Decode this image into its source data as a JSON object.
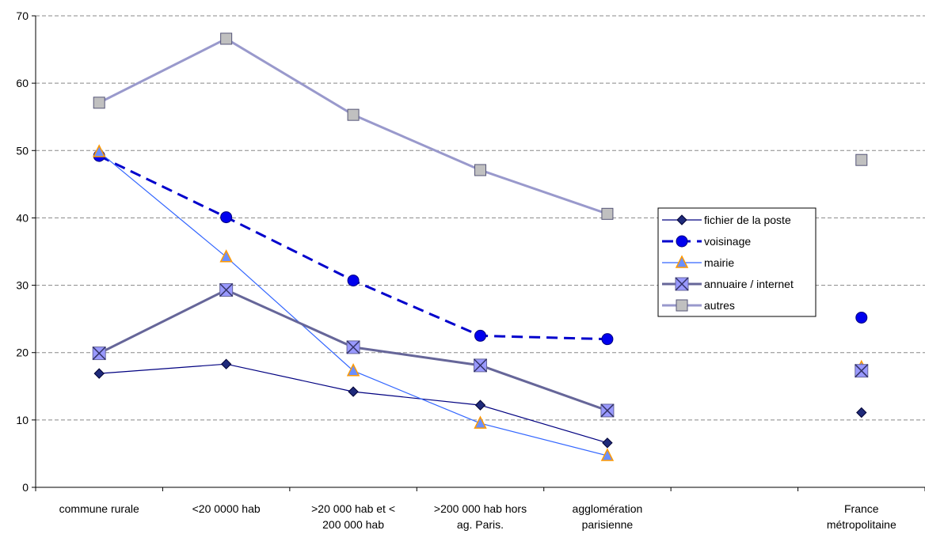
{
  "chart_data": {
    "type": "line",
    "title": "",
    "xlabel": "",
    "ylabel": "",
    "ylim": [
      0,
      70
    ],
    "yticks": [
      0,
      10,
      20,
      30,
      40,
      50,
      60,
      70
    ],
    "grid": "horizontal dashed",
    "legend_position": "right",
    "categories": [
      [
        "commune rurale"
      ],
      [
        "<20 0000 hab"
      ],
      [
        ">20 000 hab et <",
        "200 000 hab"
      ],
      [
        ">200 000 hab hors",
        "ag. Paris."
      ],
      [
        "agglomération",
        "parisienne"
      ],
      [
        ""
      ],
      [
        "France",
        "métropolitaine"
      ]
    ],
    "series": [
      {
        "name": "fichier de la poste",
        "values": [
          16.9,
          18.3,
          14.2,
          12.2,
          6.6,
          null,
          11.1
        ],
        "color": "#000080",
        "marker": "diamond",
        "style": "solid-thin"
      },
      {
        "name": "voisinage",
        "values": [
          49.2,
          40.1,
          30.7,
          22.5,
          22.0,
          null,
          25.2
        ],
        "color": "#0000CC",
        "marker": "circle",
        "style": "dashed"
      },
      {
        "name": "mairie",
        "values": [
          49.8,
          34.2,
          17.3,
          9.5,
          4.7,
          null,
          17.8
        ],
        "color": "#3366FF",
        "marker": "triangle",
        "style": "solid-thin"
      },
      {
        "name": "annuaire / internet",
        "values": [
          19.9,
          29.3,
          20.8,
          18.1,
          11.4,
          null,
          17.3
        ],
        "color": "#666699",
        "marker": "x-square",
        "style": "solid-thick"
      },
      {
        "name": "autres",
        "values": [
          57.1,
          66.6,
          55.3,
          47.1,
          40.6,
          null,
          48.6
        ],
        "color": "#9999CC",
        "marker": "square",
        "style": "solid-thick"
      }
    ]
  }
}
